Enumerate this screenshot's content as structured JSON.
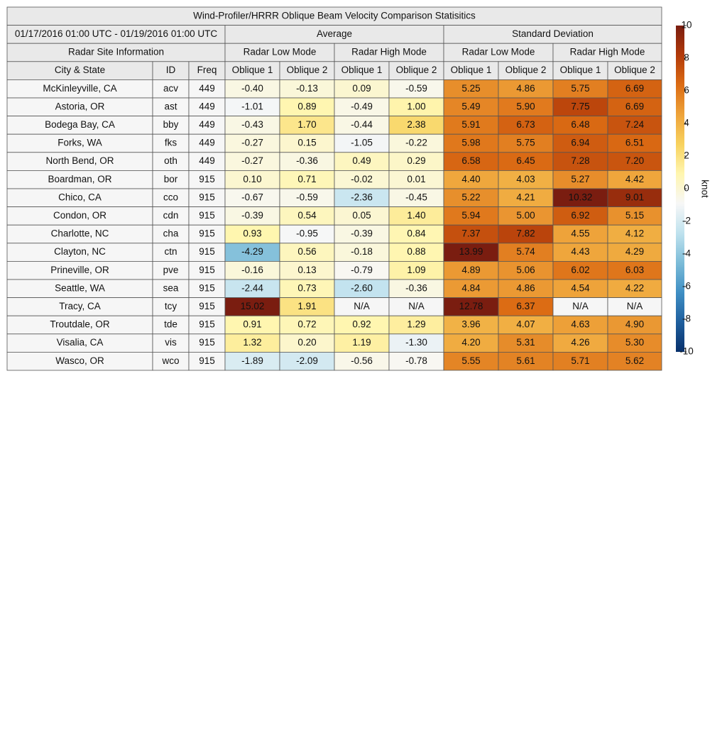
{
  "title": "Wind-Profiler/HRRR Oblique Beam Velocity Comparison Statisitics",
  "header": {
    "period": "01/17/2016 01:00 UTC - 01/19/2016 01:00 UTC",
    "groups": [
      "Average",
      "Standard Deviation"
    ],
    "site_info": "Radar Site Information",
    "modes": [
      "Radar Low Mode",
      "Radar High Mode",
      "Radar Low Mode",
      "Radar High Mode"
    ],
    "columns": [
      "City & State",
      "ID",
      "Freq",
      "Oblique 1",
      "Oblique 2",
      "Oblique 1",
      "Oblique 2",
      "Oblique 1",
      "Oblique 2",
      "Oblique 1",
      "Oblique 2"
    ]
  },
  "table": {
    "rows": [
      [
        "McKinleyville, CA",
        "acv",
        "449",
        "-0.40",
        "-0.13",
        "0.09",
        "-0.59",
        "5.25",
        "4.86",
        "5.75",
        "6.69"
      ],
      [
        "Astoria, OR",
        "ast",
        "449",
        "-1.01",
        "0.89",
        "-0.49",
        "1.00",
        "5.49",
        "5.90",
        "7.75",
        "6.69"
      ],
      [
        "Bodega Bay, CA",
        "bby",
        "449",
        "-0.43",
        "1.70",
        "-0.44",
        "2.38",
        "5.91",
        "6.73",
        "6.48",
        "7.24"
      ],
      [
        "Forks, WA",
        "fks",
        "449",
        "-0.27",
        "0.15",
        "-1.05",
        "-0.22",
        "5.98",
        "5.75",
        "6.94",
        "6.51"
      ],
      [
        "North Bend, OR",
        "oth",
        "449",
        "-0.27",
        "-0.36",
        "0.49",
        "0.29",
        "6.58",
        "6.45",
        "7.28",
        "7.20"
      ],
      [
        "Boardman, OR",
        "bor",
        "915",
        "0.10",
        "0.71",
        "-0.02",
        "0.01",
        "4.40",
        "4.03",
        "5.27",
        "4.42"
      ],
      [
        "Chico, CA",
        "cco",
        "915",
        "-0.67",
        "-0.59",
        "-2.36",
        "-0.45",
        "5.22",
        "4.21",
        "10.32",
        "9.01"
      ],
      [
        "Condon, OR",
        "cdn",
        "915",
        "-0.39",
        "0.54",
        "0.05",
        "1.40",
        "5.94",
        "5.00",
        "6.92",
        "5.15"
      ],
      [
        "Charlotte, NC",
        "cha",
        "915",
        "0.93",
        "-0.95",
        "-0.39",
        "0.84",
        "7.37",
        "7.82",
        "4.55",
        "4.12"
      ],
      [
        "Clayton, NC",
        "ctn",
        "915",
        "-4.29",
        "0.56",
        "-0.18",
        "0.88",
        "13.99",
        "5.74",
        "4.43",
        "4.29"
      ],
      [
        "Prineville, OR",
        "pve",
        "915",
        "-0.16",
        "0.13",
        "-0.79",
        "1.09",
        "4.89",
        "5.06",
        "6.02",
        "6.03"
      ],
      [
        "Seattle, WA",
        "sea",
        "915",
        "-2.44",
        "0.73",
        "-2.60",
        "-0.36",
        "4.84",
        "4.86",
        "4.54",
        "4.22"
      ],
      [
        "Tracy, CA",
        "tcy",
        "915",
        "15.02",
        "1.91",
        "N/A",
        "N/A",
        "12.78",
        "6.37",
        "N/A",
        "N/A"
      ],
      [
        "Troutdale, OR",
        "tde",
        "915",
        "0.91",
        "0.72",
        "0.92",
        "1.29",
        "3.96",
        "4.07",
        "4.63",
        "4.90"
      ],
      [
        "Visalia, CA",
        "vis",
        "915",
        "1.32",
        "0.20",
        "1.19",
        "-1.30",
        "4.20",
        "5.31",
        "4.26",
        "5.30"
      ],
      [
        "Wasco, OR",
        "wco",
        "915",
        "-1.89",
        "-2.09",
        "-0.56",
        "-0.78",
        "5.55",
        "5.61",
        "5.71",
        "5.62"
      ]
    ]
  },
  "colorbar": {
    "label": "knot",
    "lim": [
      -10,
      10
    ],
    "ticks": [
      -10,
      -8,
      -6,
      -4,
      -2,
      0,
      2,
      4,
      6,
      8,
      10
    ],
    "colors": [
      "#08306b",
      "#1f5f9e",
      "#3f8fc4",
      "#7cbcd8",
      "#bfe2ee",
      "#f7f7f7",
      "#fff6b0",
      "#f8d25e",
      "#eea33a",
      "#dc6c14",
      "#b23a0a",
      "#7a1d10"
    ]
  }
}
